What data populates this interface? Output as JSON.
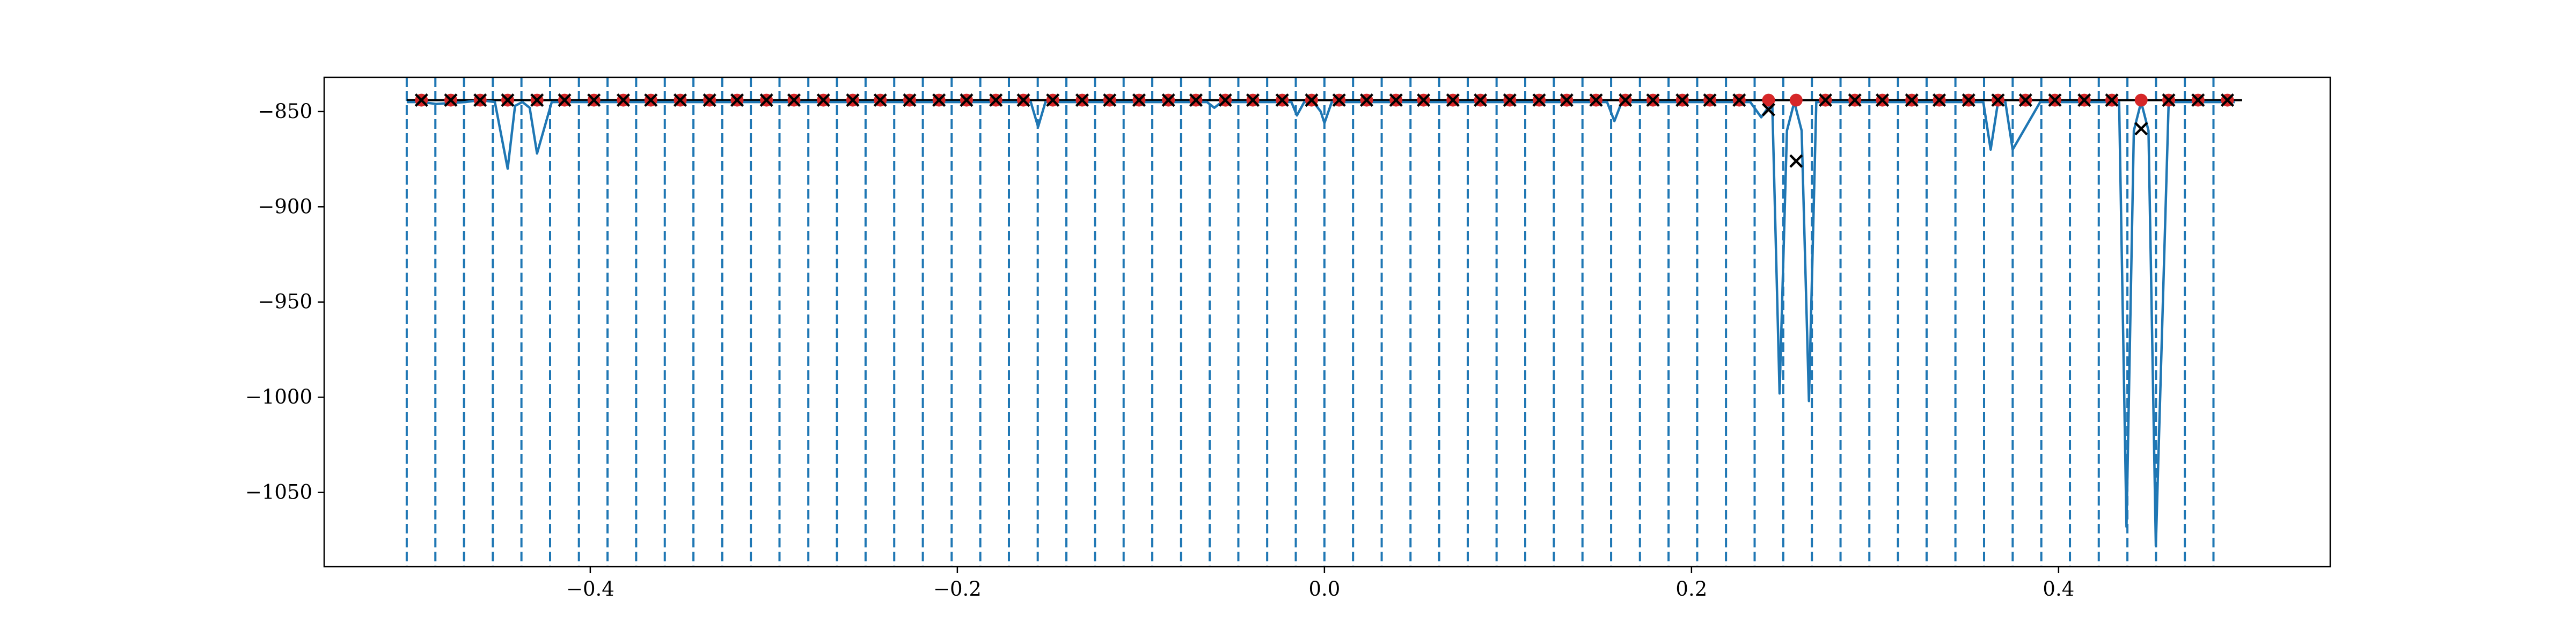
{
  "chart_data": {
    "type": "line",
    "title": "",
    "xlabel": "",
    "ylabel": "",
    "xlim": [
      -0.545,
      0.548
    ],
    "ylim": [
      -1089,
      -832
    ],
    "x_ticks": [
      -0.4,
      -0.2,
      0.0,
      0.2,
      0.4
    ],
    "x_tick_labels": [
      "−0.4",
      "−0.2",
      "0.0",
      "0.2",
      "0.4"
    ],
    "y_ticks": [
      -850,
      -900,
      -950,
      -1000,
      -1050
    ],
    "y_tick_labels": [
      "−850",
      "−900",
      "−950",
      "−1000",
      "−1050"
    ],
    "grid": false,
    "legend": "none",
    "colors": {
      "curve": "#1f77b4",
      "vlines": "#1f77b4",
      "hline": "#000000",
      "red_points": "#d62728",
      "x_markers": "#000000"
    },
    "vertical_lines_x": [
      -0.5,
      -0.4844,
      -0.4688,
      -0.4531,
      -0.4375,
      -0.4219,
      -0.4062,
      -0.3906,
      -0.375,
      -0.3594,
      -0.3438,
      -0.3281,
      -0.3125,
      -0.2969,
      -0.2812,
      -0.2656,
      -0.25,
      -0.2344,
      -0.2188,
      -0.2031,
      -0.1875,
      -0.1719,
      -0.1562,
      -0.1406,
      -0.125,
      -0.1094,
      -0.0938,
      -0.0781,
      -0.0625,
      -0.0469,
      -0.0312,
      -0.0156,
      0.0,
      0.0156,
      0.0312,
      0.0469,
      0.0625,
      0.0781,
      0.0938,
      0.1094,
      0.125,
      0.1406,
      0.1562,
      0.1719,
      0.1875,
      0.2031,
      0.2188,
      0.2344,
      0.25,
      0.2656,
      0.2812,
      0.2969,
      0.3125,
      0.3281,
      0.3438,
      0.3594,
      0.375,
      0.3906,
      0.4062,
      0.4219,
      0.4375,
      0.4531,
      0.4688,
      0.4844
    ],
    "horizontal_line": {
      "y": -844,
      "x": [
        -0.5,
        0.5
      ]
    },
    "series": [
      {
        "type": "line",
        "x": [
          -0.5,
          -0.492,
          -0.484,
          -0.468,
          -0.46,
          -0.452,
          -0.445,
          -0.441,
          -0.437,
          -0.433,
          -0.429,
          -0.421,
          -0.406,
          -0.39,
          -0.375,
          -0.359,
          -0.343,
          -0.328,
          -0.312,
          -0.296,
          -0.281,
          -0.265,
          -0.25,
          -0.234,
          -0.218,
          -0.203,
          -0.187,
          -0.171,
          -0.16,
          -0.156,
          -0.152,
          -0.14,
          -0.125,
          -0.109,
          -0.093,
          -0.078,
          -0.064,
          -0.06,
          -0.056,
          -0.046,
          -0.031,
          -0.018,
          -0.015,
          -0.011,
          -0.006,
          -0.002,
          0.0,
          0.004,
          0.015,
          0.031,
          0.046,
          0.062,
          0.078,
          0.093,
          0.109,
          0.125,
          0.14,
          0.154,
          0.158,
          0.162,
          0.171,
          0.187,
          0.203,
          0.218,
          0.232,
          0.238,
          0.244,
          0.248,
          0.252,
          0.256,
          0.26,
          0.264,
          0.268,
          0.281,
          0.296,
          0.312,
          0.328,
          0.343,
          0.359,
          0.363,
          0.367,
          0.371,
          0.375,
          0.39,
          0.406,
          0.421,
          0.433,
          0.437,
          0.441,
          0.445,
          0.449,
          0.453,
          0.46,
          0.468,
          0.484,
          0.496
        ],
        "y": [
          -845,
          -845,
          -846,
          -845,
          -844,
          -845,
          -880,
          -847,
          -845,
          -848,
          -872,
          -845,
          -845,
          -845,
          -845,
          -845,
          -845,
          -845,
          -845,
          -845,
          -845,
          -845,
          -845,
          -845,
          -845,
          -845,
          -845,
          -845,
          -845,
          -858,
          -845,
          -845,
          -845,
          -845,
          -845,
          -845,
          -845,
          -848,
          -845,
          -845,
          -845,
          -845,
          -852,
          -845,
          -845,
          -850,
          -856,
          -845,
          -845,
          -845,
          -845,
          -845,
          -845,
          -845,
          -845,
          -845,
          -845,
          -845,
          -855,
          -845,
          -845,
          -845,
          -845,
          -845,
          -845,
          -853,
          -845,
          -998,
          -860,
          -845,
          -860,
          -1002,
          -845,
          -845,
          -845,
          -845,
          -845,
          -845,
          -845,
          -870,
          -845,
          -845,
          -870,
          -845,
          -845,
          -845,
          -845,
          -1068,
          -860,
          -845,
          -860,
          -1078,
          -845,
          -845,
          -845,
          -845
        ]
      },
      {
        "type": "scatter",
        "marker": "o",
        "x": [
          -0.492,
          -0.476,
          -0.46,
          -0.445,
          -0.429,
          -0.414,
          -0.398,
          -0.382,
          -0.367,
          -0.351,
          -0.335,
          -0.32,
          -0.304,
          -0.289,
          -0.273,
          -0.257,
          -0.242,
          -0.226,
          -0.21,
          -0.195,
          -0.179,
          -0.164,
          -0.148,
          -0.132,
          -0.117,
          -0.101,
          -0.085,
          -0.07,
          -0.054,
          -0.039,
          -0.023,
          -0.007,
          0.008,
          0.023,
          0.039,
          0.054,
          0.07,
          0.085,
          0.101,
          0.117,
          0.132,
          0.148,
          0.164,
          0.179,
          0.195,
          0.21,
          0.226,
          0.242,
          0.257,
          0.273,
          0.289,
          0.304,
          0.32,
          0.335,
          0.351,
          0.367,
          0.382,
          0.398,
          0.414,
          0.429,
          0.445,
          0.46,
          0.476,
          0.492
        ],
        "y": [
          -844,
          -844,
          -844,
          -844,
          -844,
          -844,
          -844,
          -844,
          -844,
          -844,
          -844,
          -844,
          -844,
          -844,
          -844,
          -844,
          -844,
          -844,
          -844,
          -844,
          -844,
          -844,
          -844,
          -844,
          -844,
          -844,
          -844,
          -844,
          -844,
          -844,
          -844,
          -844,
          -844,
          -844,
          -844,
          -844,
          -844,
          -844,
          -844,
          -844,
          -844,
          -844,
          -844,
          -844,
          -844,
          -844,
          -844,
          -844,
          -844,
          -844,
          -844,
          -844,
          -844,
          -844,
          -844,
          -844,
          -844,
          -844,
          -844,
          -844,
          -844,
          -844,
          -844,
          -844
        ]
      },
      {
        "type": "scatter",
        "marker": "x",
        "x": [
          -0.492,
          -0.476,
          -0.46,
          -0.445,
          -0.429,
          -0.414,
          -0.398,
          -0.382,
          -0.367,
          -0.351,
          -0.335,
          -0.32,
          -0.304,
          -0.289,
          -0.273,
          -0.257,
          -0.242,
          -0.226,
          -0.21,
          -0.195,
          -0.179,
          -0.164,
          -0.148,
          -0.132,
          -0.117,
          -0.101,
          -0.085,
          -0.07,
          -0.054,
          -0.039,
          -0.023,
          -0.007,
          0.008,
          0.023,
          0.039,
          0.054,
          0.07,
          0.085,
          0.101,
          0.117,
          0.132,
          0.148,
          0.164,
          0.179,
          0.195,
          0.21,
          0.226,
          0.242,
          0.257,
          0.273,
          0.289,
          0.304,
          0.32,
          0.335,
          0.351,
          0.367,
          0.382,
          0.398,
          0.414,
          0.429,
          0.445,
          0.46,
          0.476,
          0.492
        ],
        "y": [
          -844,
          -844,
          -844,
          -844,
          -844,
          -844,
          -844,
          -844,
          -844,
          -844,
          -844,
          -844,
          -844,
          -844,
          -844,
          -844,
          -844,
          -844,
          -844,
          -844,
          -844,
          -844,
          -844,
          -844,
          -844,
          -844,
          -844,
          -844,
          -844,
          -844,
          -844,
          -844,
          -844,
          -844,
          -844,
          -844,
          -844,
          -844,
          -844,
          -844,
          -844,
          -844,
          -844,
          -844,
          -844,
          -844,
          -844,
          -849,
          -876,
          -844,
          -844,
          -844,
          -844,
          -844,
          -844,
          -844,
          -844,
          -844,
          -844,
          -844,
          -859,
          -844,
          -844,
          -844
        ]
      }
    ]
  }
}
